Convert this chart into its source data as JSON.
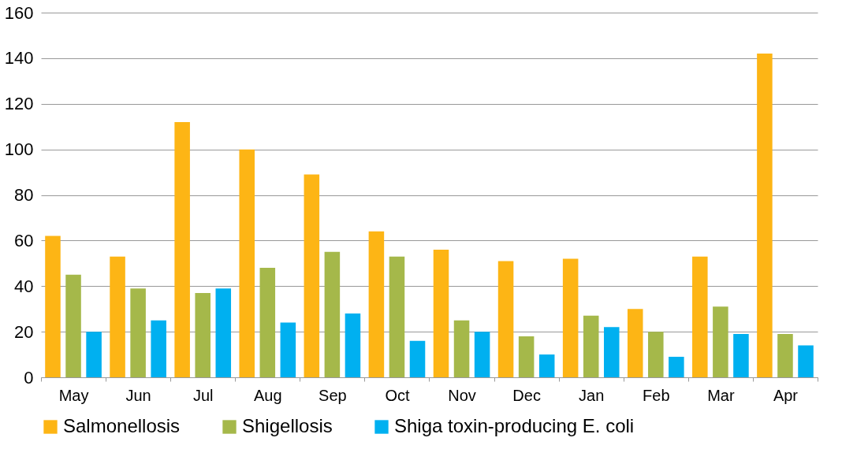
{
  "chart_data": {
    "type": "bar",
    "categories": [
      "May",
      "Jun",
      "Jul",
      "Aug",
      "Sep",
      "Oct",
      "Nov",
      "Dec",
      "Jan",
      "Feb",
      "Mar",
      "Apr"
    ],
    "series": [
      {
        "name": "Salmonellosis",
        "color": "#fdb515",
        "values": [
          62,
          53,
          112,
          100,
          89,
          64,
          56,
          51,
          52,
          30,
          53,
          142
        ]
      },
      {
        "name": "Shigellosis",
        "color": "#a5b84a",
        "values": [
          45,
          39,
          37,
          48,
          55,
          53,
          25,
          18,
          27,
          20,
          31,
          19
        ]
      },
      {
        "name": "Shiga toxin-producing E. coli",
        "color": "#00b0f0",
        "values": [
          20,
          25,
          39,
          24,
          28,
          16,
          20,
          10,
          22,
          9,
          19,
          14
        ]
      }
    ],
    "ylim": [
      0,
      160
    ],
    "yticks": [
      0,
      20,
      40,
      60,
      80,
      100,
      120,
      140,
      160
    ],
    "grid": "y",
    "legend": "bottom"
  }
}
